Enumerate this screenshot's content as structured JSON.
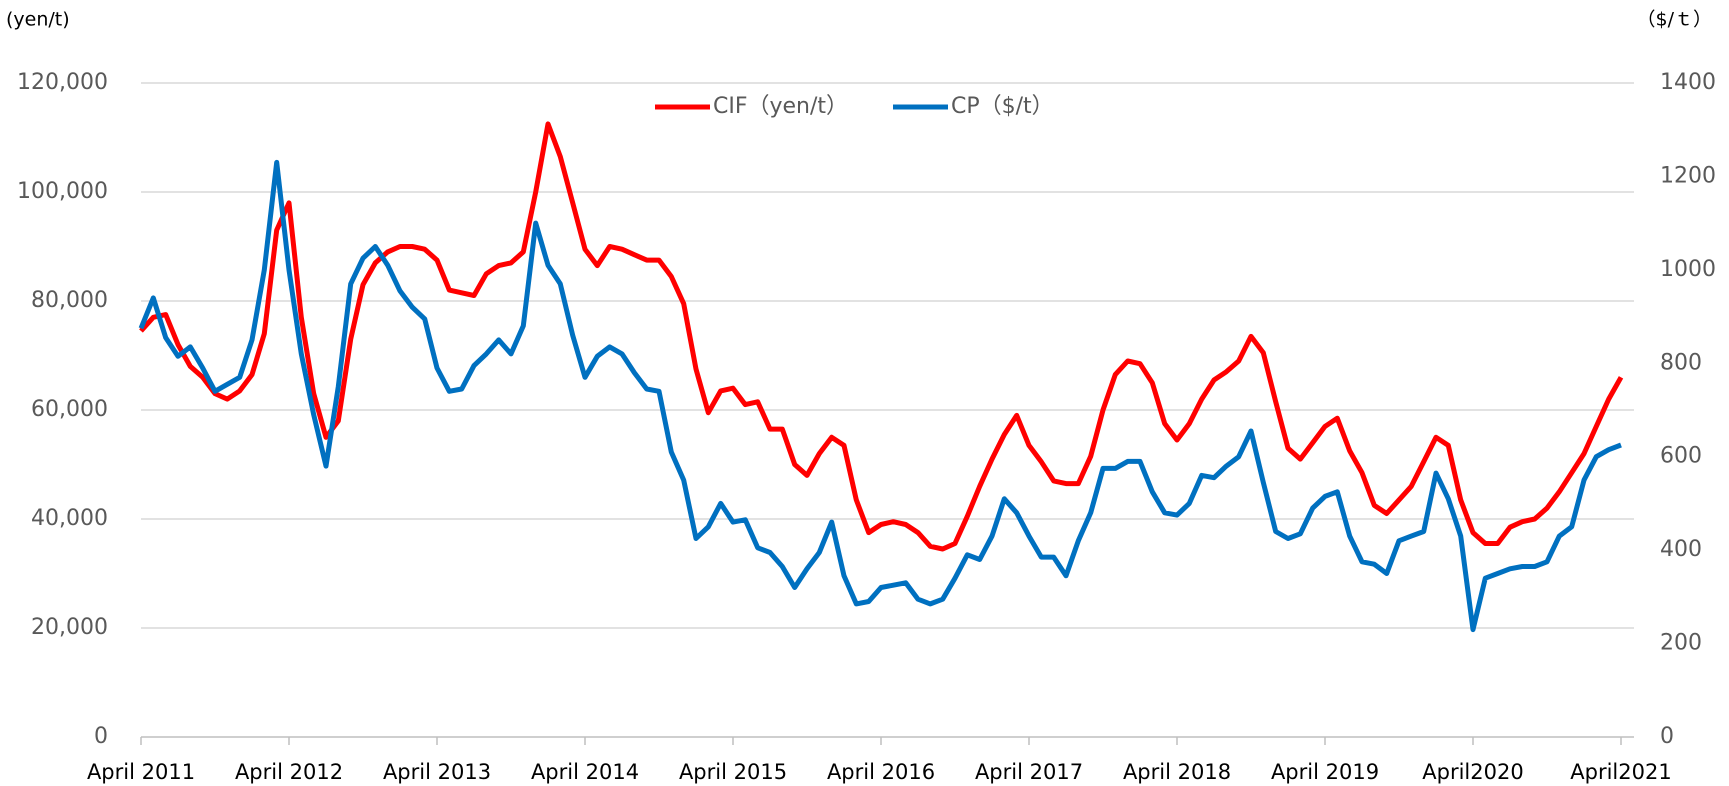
{
  "chart_data": {
    "type": "line",
    "y_unit_label": "(yen/t)",
    "y2_unit_label": "（$/ｔ）",
    "categories": [
      "April 2011",
      null,
      null,
      null,
      null,
      null,
      null,
      null,
      null,
      null,
      null,
      null,
      "April 2012",
      null,
      null,
      null,
      null,
      null,
      null,
      null,
      null,
      null,
      null,
      null,
      "April 2013",
      null,
      null,
      null,
      null,
      null,
      null,
      null,
      null,
      null,
      null,
      null,
      "April 2014",
      null,
      null,
      null,
      null,
      null,
      null,
      null,
      null,
      null,
      null,
      null,
      "April 2015",
      null,
      null,
      null,
      null,
      null,
      null,
      null,
      null,
      null,
      null,
      null,
      "April 2016",
      null,
      null,
      null,
      null,
      null,
      null,
      null,
      null,
      null,
      null,
      null,
      "April 2017",
      null,
      null,
      null,
      null,
      null,
      null,
      null,
      null,
      null,
      null,
      null,
      "April 2018",
      null,
      null,
      null,
      null,
      null,
      null,
      null,
      null,
      null,
      null,
      null,
      "April 2019",
      null,
      null,
      null,
      null,
      null,
      null,
      null,
      null,
      null,
      null,
      null,
      "April2020",
      null,
      null,
      null,
      null,
      null,
      null,
      null,
      null,
      null,
      null,
      null,
      "April2021"
    ],
    "series": [
      {
        "name": "CIF（yen/t）",
        "color": "#ff0000",
        "axis": "y",
        "values": [
          74500,
          77000,
          77500,
          72000,
          68000,
          66000,
          63000,
          62000,
          63500,
          66500,
          74000,
          93000,
          98000,
          77000,
          63000,
          55000,
          58000,
          73000,
          83000,
          87000,
          89000,
          90000,
          90000,
          89500,
          87500,
          82000,
          81500,
          81000,
          85000,
          86500,
          87000,
          89000,
          100000,
          112500,
          106500,
          98000,
          89500,
          86500,
          90000,
          89500,
          88500,
          87500,
          87500,
          84500,
          79500,
          67500,
          59500,
          63500,
          64000,
          61000,
          61500,
          56500,
          56500,
          50000,
          48000,
          52000,
          55000,
          53500,
          43500,
          37500,
          39000,
          39500,
          39000,
          37500,
          35000,
          34500,
          35500,
          40500,
          46000,
          51000,
          55500,
          59000,
          53500,
          50500,
          47000,
          46500,
          46500,
          51500,
          60000,
          66500,
          69000,
          68500,
          65000,
          57500,
          54500,
          57500,
          62000,
          65500,
          67000,
          69000,
          73500,
          70500,
          61500,
          53000,
          51000,
          54000,
          57000,
          58500,
          52500,
          48500,
          42500,
          41000,
          43500,
          46000,
          50500,
          55000,
          53500,
          43500,
          37500,
          35500,
          35500,
          38500,
          39500,
          40000,
          42000,
          45000,
          48500,
          52000,
          57000,
          62000,
          66000
        ]
      },
      {
        "name": "CP（$/t）",
        "color": "#0070c0",
        "axis": "y2",
        "values": [
          875,
          940,
          855,
          815,
          835,
          790,
          740,
          755,
          770,
          850,
          1000,
          1230,
          1000,
          820,
          690,
          580,
          750,
          970,
          1025,
          1050,
          1010,
          955,
          920,
          895,
          790,
          740,
          745,
          795,
          820,
          850,
          820,
          880,
          1100,
          1010,
          970,
          860,
          770,
          815,
          835,
          820,
          780,
          745,
          740,
          610,
          550,
          425,
          450,
          500,
          460,
          465,
          405,
          395,
          365,
          320,
          360,
          395,
          460,
          345,
          285,
          290,
          320,
          325,
          330,
          295,
          285,
          295,
          340,
          390,
          380,
          430,
          510,
          480,
          430,
          385,
          385,
          345,
          420,
          480,
          575,
          575,
          590,
          590,
          525,
          480,
          475,
          500,
          560,
          555,
          580,
          600,
          655,
          545,
          440,
          425,
          435,
          490,
          515,
          525,
          430,
          375,
          370,
          350,
          420,
          430,
          440,
          565,
          510,
          430,
          230,
          340,
          350,
          360,
          365,
          365,
          375,
          430,
          450,
          550,
          600,
          615,
          625
        ]
      }
    ],
    "ylim": [
      0,
      120000
    ],
    "yticks": [
      {
        "value": 0,
        "label": "0"
      },
      {
        "value": 20000,
        "label": "20,000"
      },
      {
        "value": 40000,
        "label": "40,000"
      },
      {
        "value": 60000,
        "label": "60,000"
      },
      {
        "value": 80000,
        "label": "80,000"
      },
      {
        "value": 100000,
        "label": "100,000"
      },
      {
        "value": 120000,
        "label": "120,000"
      }
    ],
    "y2lim": [
      0,
      1400
    ],
    "y2ticks": [
      0,
      200,
      400,
      600,
      800,
      1000,
      1200,
      1400
    ],
    "grid": true,
    "legend": "top"
  }
}
